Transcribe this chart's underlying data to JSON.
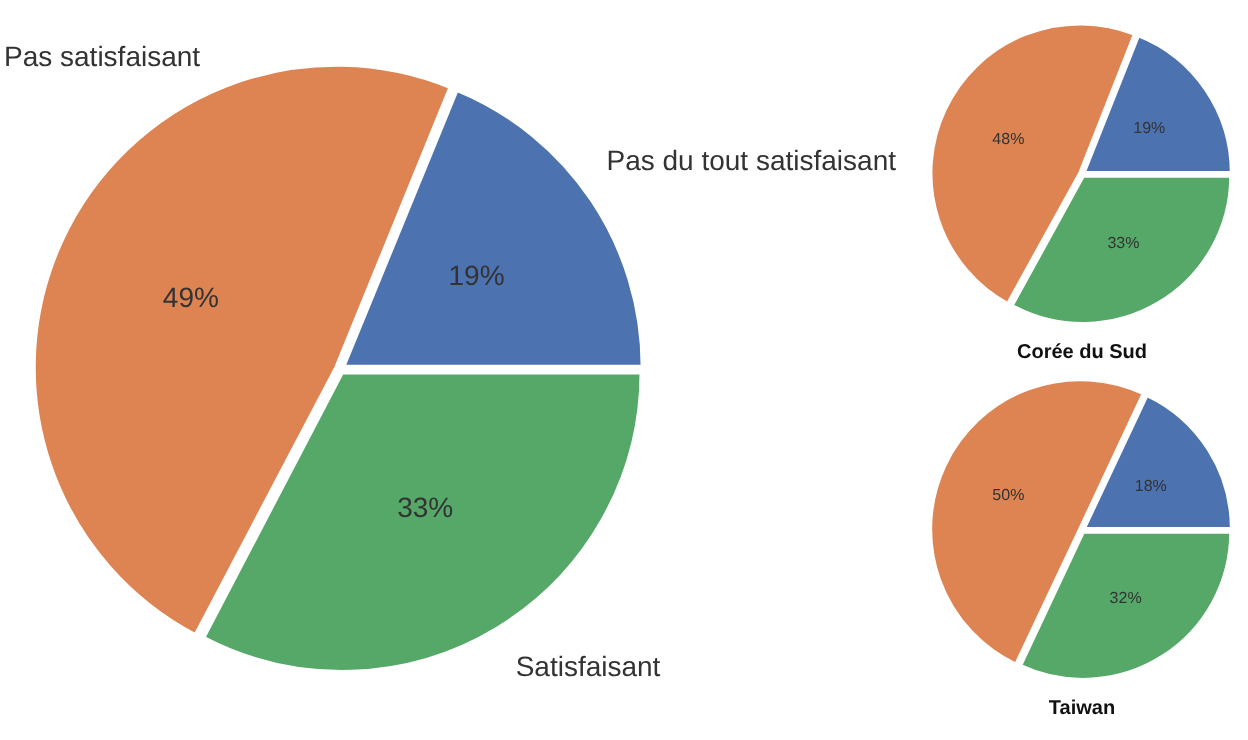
{
  "chart_data": [
    {
      "type": "pie",
      "categories": [
        "Pas du tout satisfaisant",
        "Satisfaisant",
        "Pas satisfaisant"
      ],
      "values": [
        19,
        33,
        49
      ],
      "colors": [
        "#4c72b0",
        "#55a868",
        "#dd8452"
      ],
      "value_labels": [
        "19%",
        "33%",
        "49%"
      ]
    },
    {
      "type": "pie",
      "title": "Corée du Sud",
      "categories": [
        null,
        null,
        null
      ],
      "values": [
        19,
        33,
        48
      ],
      "colors": [
        "#4c72b0",
        "#55a868",
        "#dd8452"
      ],
      "value_labels": [
        "19%",
        "33%",
        "48%"
      ]
    },
    {
      "type": "pie",
      "title": "Taiwan",
      "categories": [
        null,
        null,
        null
      ],
      "values": [
        18,
        32,
        50
      ],
      "colors": [
        "#4c72b0",
        "#55a868",
        "#dd8452"
      ],
      "value_labels": [
        "18%",
        "32%",
        "50%"
      ]
    }
  ]
}
